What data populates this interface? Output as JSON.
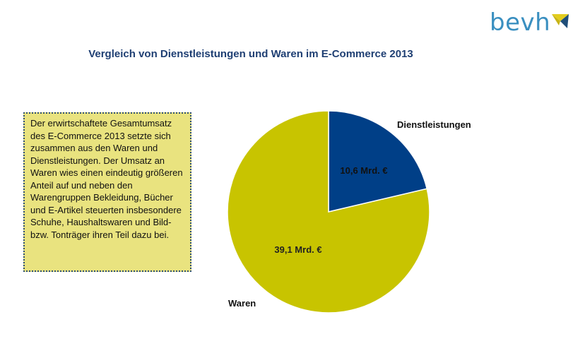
{
  "logo": {
    "text": "bevh",
    "colors": {
      "text": "#3a8fc0",
      "mark_top": "#e3cd1e",
      "mark_side": "#1f4e79"
    }
  },
  "title": "Vergleich von Dienstleistungen und Waren im E-Commerce 2013",
  "note": {
    "text": "Der erwirtschaftete Gesamtumsatz des E-Commerce 2013 setzte sich zusammen aus den Waren und Dienstleistungen. Der Umsatz an Waren wies einen eindeutig größeren Anteil auf und neben den Warengruppen Bekleidung, Bücher und E-Artikel steuerten insbesondere Schuhe, Haushaltswaren und Bild- bzw. Tonträger ihren Teil dazu bei."
  },
  "chart_data": {
    "type": "pie",
    "title": "Vergleich von Dienstleistungen und Waren im E-Commerce 2013",
    "slices": [
      {
        "label": "Dienstleistungen",
        "value": 10.6,
        "data_label": "10,6 Mrd. €",
        "color": "#003f87"
      },
      {
        "label": "Waren",
        "value": 39.1,
        "data_label": "39,1 Mrd. €",
        "color": "#c8c400"
      }
    ],
    "legend": "none"
  }
}
